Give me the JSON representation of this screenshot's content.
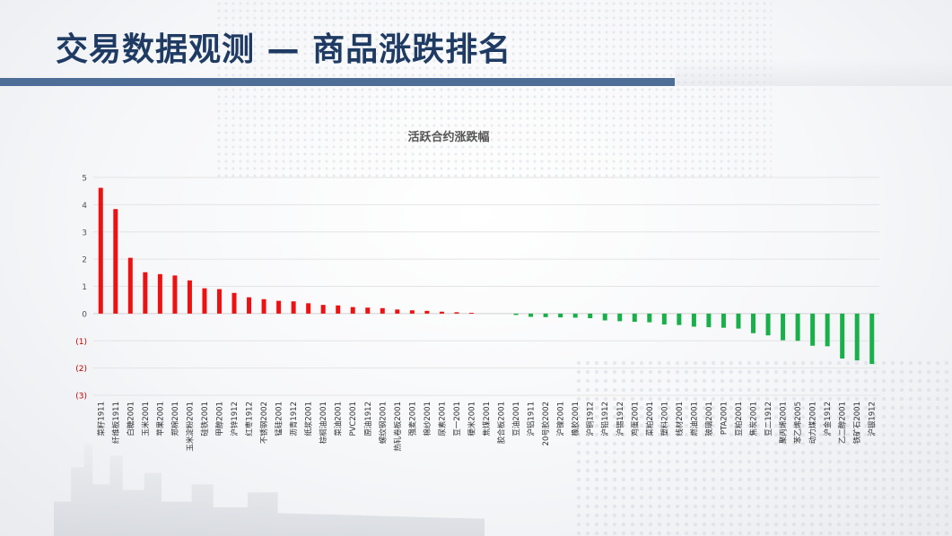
{
  "header": {
    "title": "交易数据观测 — 商品涨跌排名"
  },
  "colors": {
    "up": "#ee1111",
    "down": "#18b04a",
    "title": "#1f3b63",
    "bar_accent": "#4f6e97"
  },
  "chart_data": {
    "type": "bar",
    "title": "活跃合约涨跌幅",
    "xlabel": "",
    "ylabel": "",
    "ylim": [
      -3,
      5
    ],
    "yticks": [
      5,
      4,
      3,
      2,
      1,
      0,
      -1,
      -2,
      -3
    ],
    "ytick_labels": [
      "5",
      "4",
      "3",
      "2",
      "1",
      "0",
      "(1)",
      "(2)",
      "(3)"
    ],
    "grid": true,
    "categories": [
      "菜籽1911",
      "纤维板1911",
      "白糖2001",
      "玉米2001",
      "苹果2001",
      "郑棉2001",
      "玉米淀粉2001",
      "硅铁2001",
      "甲醇2001",
      "沪锌1912",
      "红枣1912",
      "不锈钢2002",
      "锰硅2001",
      "沥青1912",
      "纸浆2001",
      "棕榈油2001",
      "菜油2001",
      "PVC2001",
      "原油1912",
      "螺纹钢2001",
      "热轧卷板2001",
      "强麦2001",
      "棉纱2001",
      "尿素2001",
      "豆一2001",
      "粳米2001",
      "焦煤2001",
      "胶合板2001",
      "豆油2001",
      "沪铝1911",
      "20号胶2002",
      "沪镍2001",
      "橡胶2001",
      "沪铜1912",
      "沪铅1912",
      "沪锡1912",
      "鸡蛋2001",
      "菜粕2001",
      "塑料2001",
      "线材2001",
      "燃油2001",
      "玻璃2001",
      "PTA2001",
      "豆粕2001",
      "焦炭2001",
      "豆二1912",
      "聚丙烯2001",
      "苯乙烯2005",
      "动力煤2001",
      "沪金1912",
      "乙二醇2001",
      "铁矿石2001",
      "沪银1912"
    ],
    "values": [
      4.62,
      3.84,
      2.05,
      1.52,
      1.45,
      1.4,
      1.22,
      0.93,
      0.9,
      0.76,
      0.6,
      0.53,
      0.47,
      0.45,
      0.38,
      0.32,
      0.3,
      0.24,
      0.22,
      0.2,
      0.15,
      0.12,
      0.1,
      0.07,
      0.05,
      0.03,
      0.0,
      0.0,
      -0.05,
      -0.12,
      -0.13,
      -0.14,
      -0.15,
      -0.17,
      -0.25,
      -0.28,
      -0.3,
      -0.32,
      -0.4,
      -0.42,
      -0.48,
      -0.5,
      -0.52,
      -0.55,
      -0.72,
      -0.8,
      -0.98,
      -1.0,
      -1.18,
      -1.2,
      -1.65,
      -1.72,
      -1.85
    ]
  }
}
